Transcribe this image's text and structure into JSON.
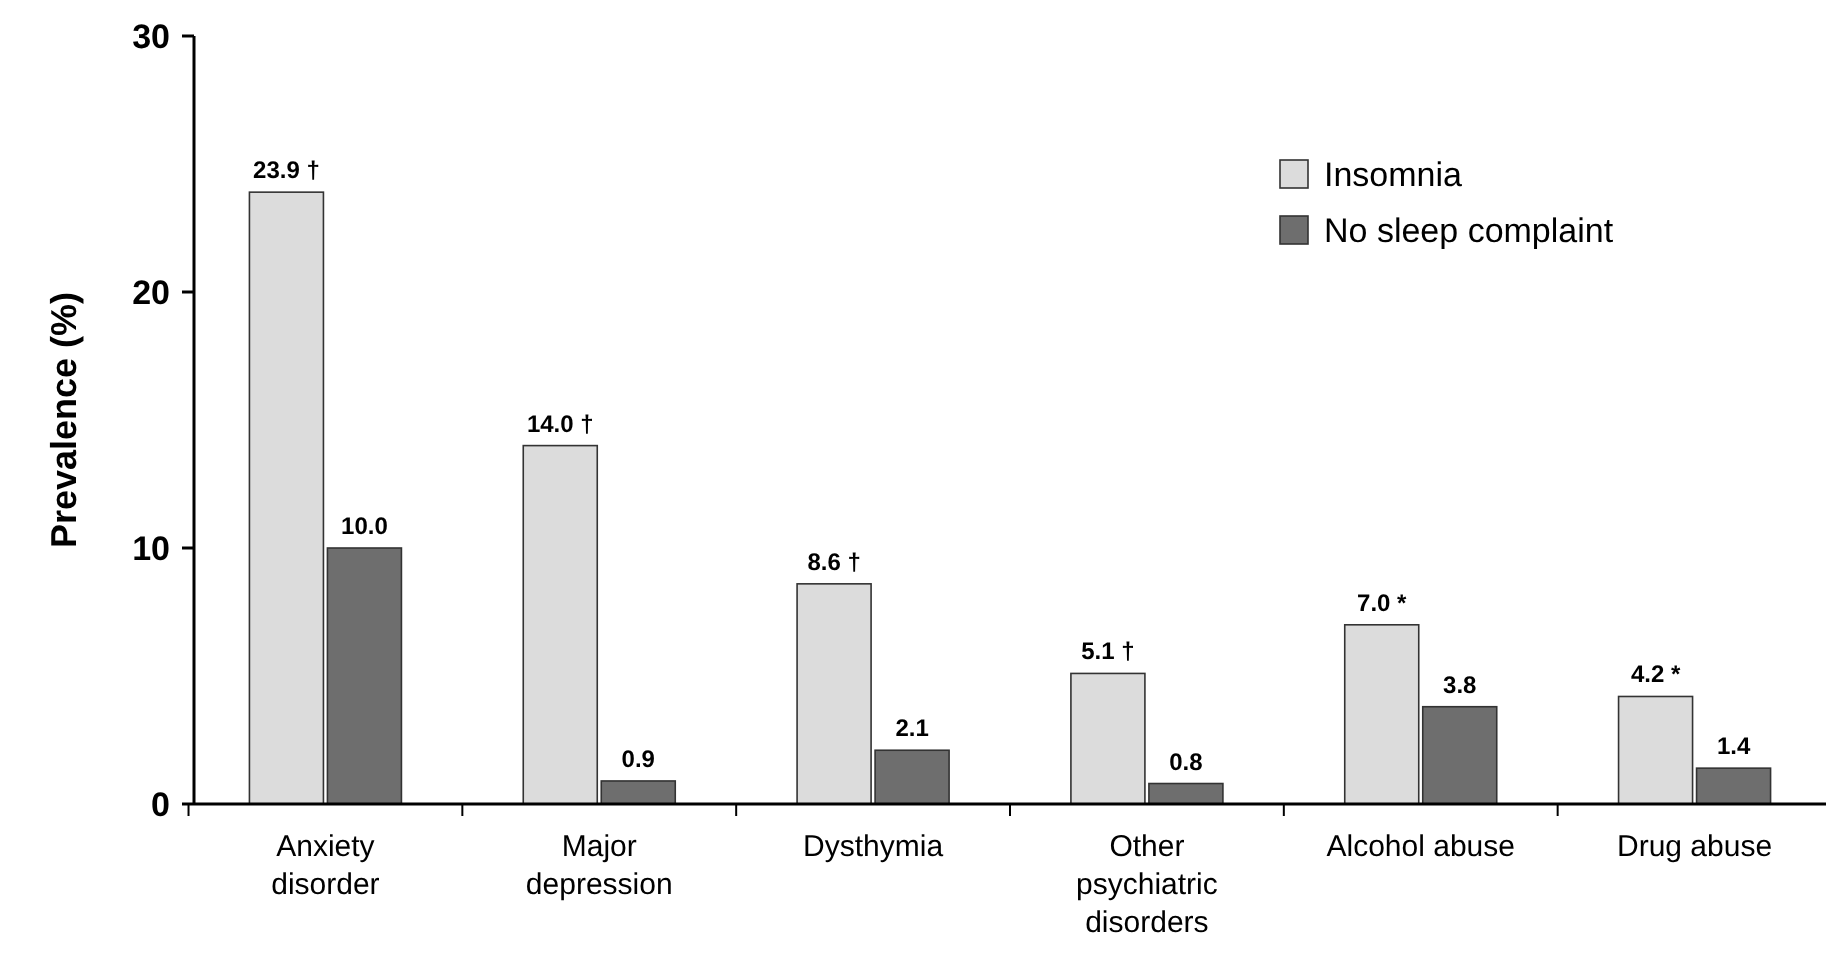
{
  "chart_data": {
    "type": "bar",
    "ylabel": "Prevalence (%)",
    "categories": [
      "Anxiety\ndisorder",
      "Major\ndepression",
      "Dysthymia",
      "Other\npsychiatric\ndisorders",
      "Alcohol abuse",
      "Drug abuse"
    ],
    "series": [
      {
        "name": "Insomnia",
        "color": "#dcdcdc",
        "values": [
          23.9,
          14.0,
          8.6,
          5.1,
          7.0,
          4.2
        ],
        "value_labels": [
          "23.9 †",
          "14.0 †",
          "8.6 †",
          "5.1 †",
          "7.0 *",
          "4.2 *"
        ]
      },
      {
        "name": "No sleep complaint",
        "color": "#6e6e6e",
        "values": [
          10.0,
          0.9,
          2.1,
          0.8,
          3.8,
          1.4
        ],
        "value_labels": [
          "10.0",
          "0.9",
          "2.1",
          "0.8",
          "3.8",
          "1.4"
        ]
      }
    ],
    "ylim": [
      0,
      30
    ],
    "yticks": [
      0,
      10,
      20,
      30
    ],
    "grid": false,
    "legend": "top right"
  }
}
